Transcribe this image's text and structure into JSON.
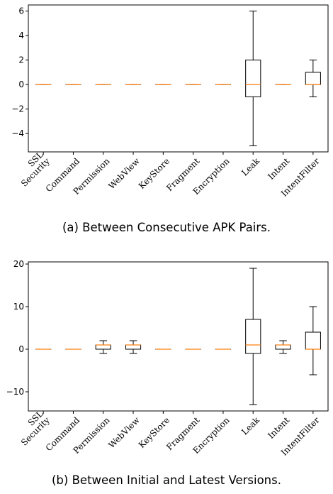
{
  "chart_data": [
    {
      "type": "box",
      "caption": "(a) Between Consecutive APK Pairs.",
      "categories": [
        "SSL Security",
        "Command",
        "Permission",
        "WebView",
        "KeyStore",
        "Fragment",
        "Encryption",
        "Leak",
        "Intent",
        "IntentFilter"
      ],
      "category_labels": [
        "SSL\nSecurity",
        "Command",
        "Permission",
        "WebView",
        "KeyStore",
        "Fragment",
        "Encryption",
        "Leak",
        "Intent",
        "IntentFilter"
      ],
      "ylim": [
        -5.5,
        6.5
      ],
      "yticks": [
        -4,
        -2,
        0,
        2,
        4,
        6
      ],
      "boxes": [
        {
          "whislo": 0,
          "q1": 0,
          "med": 0,
          "q3": 0,
          "whishi": 0
        },
        {
          "whislo": 0,
          "q1": 0,
          "med": 0,
          "q3": 0,
          "whishi": 0
        },
        {
          "whislo": 0,
          "q1": 0,
          "med": 0,
          "q3": 0,
          "whishi": 0
        },
        {
          "whislo": 0,
          "q1": 0,
          "med": 0,
          "q3": 0,
          "whishi": 0
        },
        {
          "whislo": 0,
          "q1": 0,
          "med": 0,
          "q3": 0,
          "whishi": 0
        },
        {
          "whislo": 0,
          "q1": 0,
          "med": 0,
          "q3": 0,
          "whishi": 0
        },
        {
          "whislo": 0,
          "q1": 0,
          "med": 0,
          "q3": 0,
          "whishi": 0
        },
        {
          "whislo": -5,
          "q1": -1,
          "med": 0,
          "q3": 2,
          "whishi": 6
        },
        {
          "whislo": 0,
          "q1": 0,
          "med": 0,
          "q3": 0,
          "whishi": 0
        },
        {
          "whislo": -1,
          "q1": 0,
          "med": 0,
          "q3": 1,
          "whishi": 2
        }
      ],
      "colors": {
        "box": "#000000",
        "median": "#ff7f0e"
      }
    },
    {
      "type": "box",
      "caption": "(b) Between Initial and Latest Versions.",
      "categories": [
        "SSL Security",
        "Command",
        "Permission",
        "WebView",
        "KeyStore",
        "Fragment",
        "Encryption",
        "Leak",
        "Intent",
        "IntentFilter"
      ],
      "category_labels": [
        "SSL\nSecurity",
        "Command",
        "Permission",
        "WebView",
        "KeyStore",
        "Fragment",
        "Encryption",
        "Leak",
        "Intent",
        "IntentFilter"
      ],
      "ylim": [
        -14.5,
        20.5
      ],
      "yticks": [
        -10,
        0,
        10,
        20
      ],
      "boxes": [
        {
          "whislo": 0,
          "q1": 0,
          "med": 0,
          "q3": 0,
          "whishi": 0
        },
        {
          "whislo": 0,
          "q1": 0,
          "med": 0,
          "q3": 0,
          "whishi": 0
        },
        {
          "whislo": -1,
          "q1": 0,
          "med": 1,
          "q3": 1,
          "whishi": 2
        },
        {
          "whislo": -1,
          "q1": 0,
          "med": 1,
          "q3": 1,
          "whishi": 2
        },
        {
          "whislo": 0,
          "q1": 0,
          "med": 0,
          "q3": 0,
          "whishi": 0
        },
        {
          "whislo": 0,
          "q1": 0,
          "med": 0,
          "q3": 0,
          "whishi": 0
        },
        {
          "whislo": 0,
          "q1": 0,
          "med": 0,
          "q3": 0,
          "whishi": 0
        },
        {
          "whislo": -13,
          "q1": -1,
          "med": 1,
          "q3": 7,
          "whishi": 19
        },
        {
          "whislo": -1,
          "q1": 0,
          "med": 1,
          "q3": 1,
          "whishi": 2
        },
        {
          "whislo": -6,
          "q1": 0,
          "med": 0,
          "q3": 4,
          "whishi": 10
        }
      ],
      "colors": {
        "box": "#000000",
        "median": "#ff7f0e"
      }
    }
  ]
}
